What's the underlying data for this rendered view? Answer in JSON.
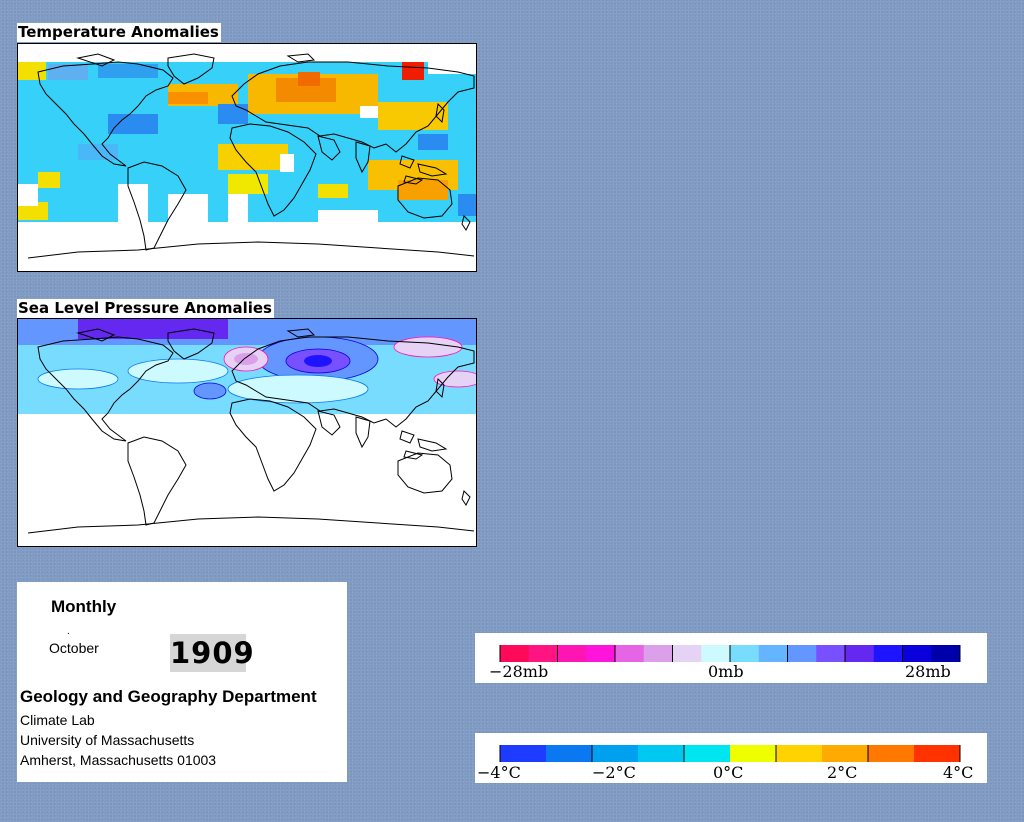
{
  "temperature_panel": {
    "title": "Temperature Anomalies"
  },
  "pressure_panel": {
    "title": "Sea Level Pressure Anomalies"
  },
  "info": {
    "frequency": "Monthly",
    "month": "October",
    "dot": ".",
    "year": "1909",
    "department": "Geology and Geography Department",
    "lab": "Climate Lab",
    "university": "University of Massachusetts",
    "address": "Amherst, Massachusetts 01003"
  },
  "pressure_legend": {
    "colors": [
      "#ff0a5a",
      "#ff1482",
      "#ff14b4",
      "#ff14dc",
      "#e664e6",
      "#dca0eb",
      "#e6d2f5",
      "#cdfaff",
      "#78dcff",
      "#64b4ff",
      "#6496ff",
      "#7850ff",
      "#6428f0",
      "#1e14ff",
      "#0a00dc",
      "#0000aa"
    ],
    "labels": [
      "−28mb",
      "0mb",
      "28mb"
    ]
  },
  "temperature_legend": {
    "colors": [
      "#1e3cff",
      "#0a78f0",
      "#00a0f0",
      "#00c8f0",
      "#00e6f0",
      "#f0ff00",
      "#ffd200",
      "#ffaa00",
      "#ff7800",
      "#ff3200"
    ],
    "labels": [
      "−4°C",
      "−2°C",
      "0°C",
      "2°C",
      "4°C"
    ]
  },
  "colors": {
    "background": "#7f9bc3",
    "land_outline": "#000000"
  }
}
